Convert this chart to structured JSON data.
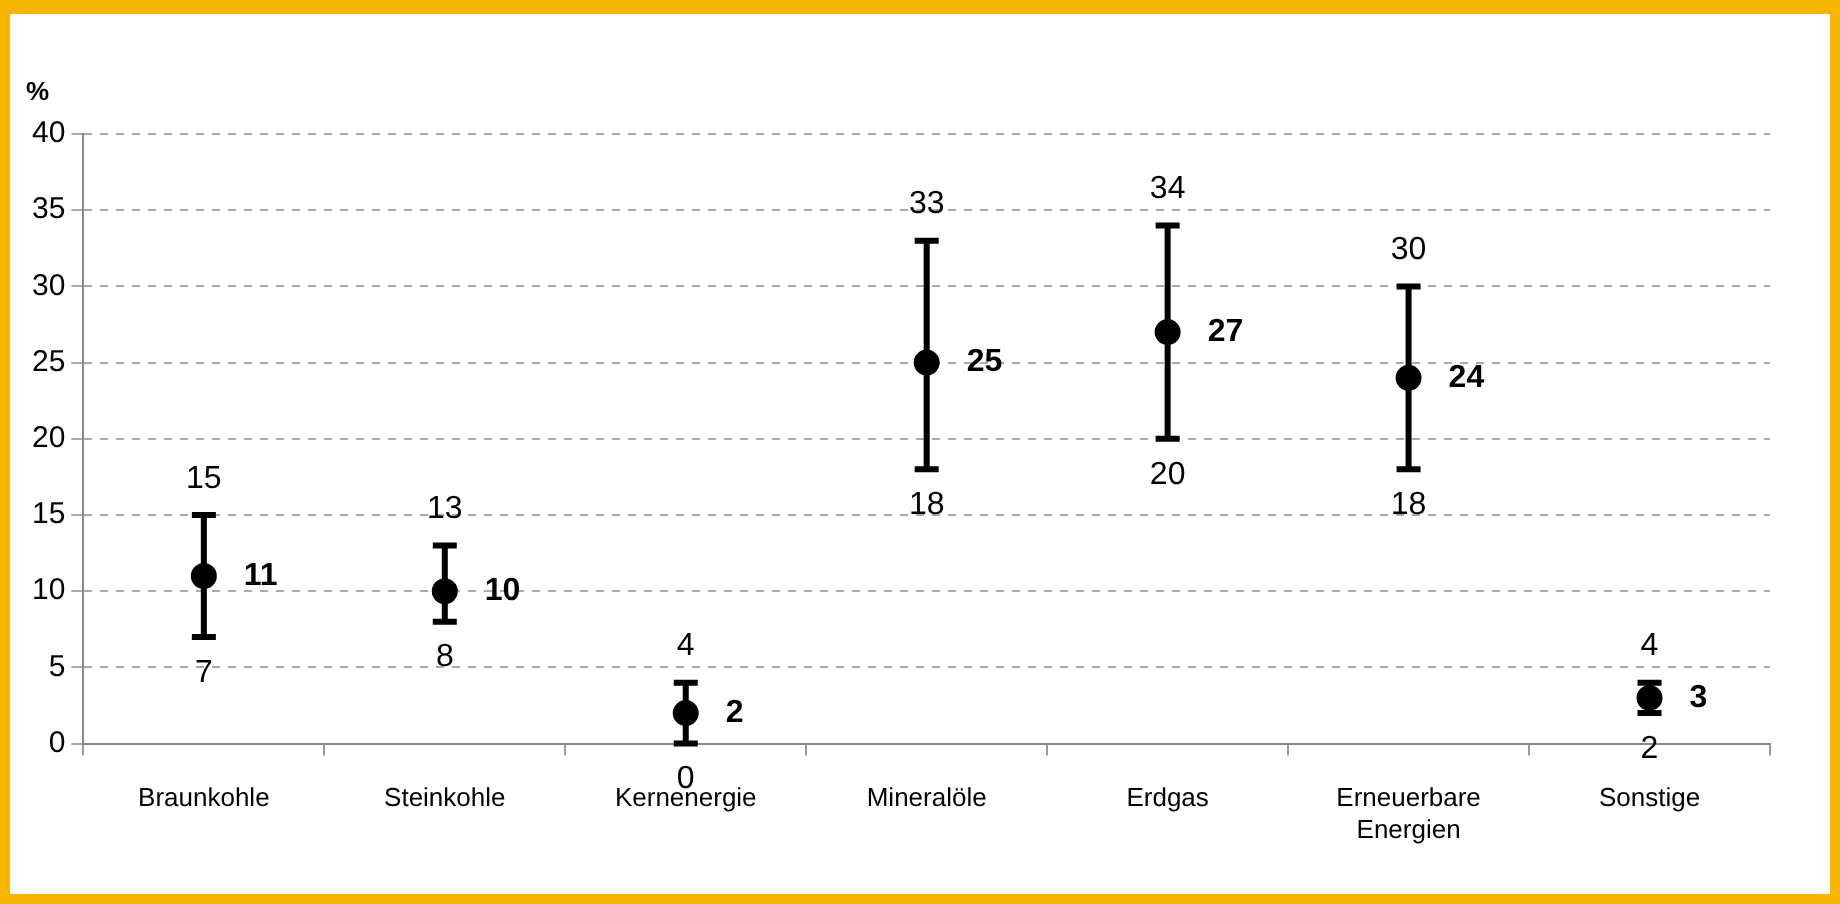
{
  "chart_data": {
    "type": "scatter",
    "ylabel": "%",
    "categories": [
      "Braunkohle",
      "Steinkohle",
      "Kernenergie",
      "Mineralöle",
      "Erdgas",
      "Erneuerbare Energien",
      "Sonstige"
    ],
    "values": [
      11,
      10,
      2,
      25,
      27,
      24,
      3
    ],
    "errors": [
      [
        7,
        15
      ],
      [
        8,
        13
      ],
      [
        0,
        4
      ],
      [
        18,
        33
      ],
      [
        20,
        34
      ],
      [
        18,
        30
      ],
      [
        2,
        4
      ]
    ],
    "annotations": [
      {
        "text": "15",
        "x": "Braunkohle",
        "y": 15
      },
      {
        "text": "7",
        "x": "Braunkohle",
        "y": 7
      },
      {
        "text": "13",
        "x": "Steinkohle",
        "y": 13
      },
      {
        "text": "8",
        "x": "Steinkohle",
        "y": 8
      },
      {
        "text": "4",
        "x": "Kernenergie",
        "y": 4
      },
      {
        "text": "0",
        "x": "Kernenergie",
        "y": 0
      },
      {
        "text": "33",
        "x": "Mineralöle",
        "y": 33
      },
      {
        "text": "18",
        "x": "Mineralöle",
        "y": 18
      },
      {
        "text": "34",
        "x": "Erdgas",
        "y": 34
      },
      {
        "text": "20",
        "x": "Erdgas",
        "y": 20
      },
      {
        "text": "30",
        "x": "Erneuerbare Energien",
        "y": 30
      },
      {
        "text": "18",
        "x": "Erneuerbare Energien",
        "y": 18
      },
      {
        "text": "4",
        "x": "Sonstige",
        "y": 4
      },
      {
        "text": "2",
        "x": "Sonstige",
        "y": 2
      }
    ],
    "color": "#000000",
    "marker": "circle",
    "data_labels": true,
    "ylim": [
      0,
      40
    ],
    "yticks": [
      0,
      5,
      10,
      15,
      20,
      25,
      30,
      35,
      40
    ],
    "grid": "y",
    "legend": false
  }
}
